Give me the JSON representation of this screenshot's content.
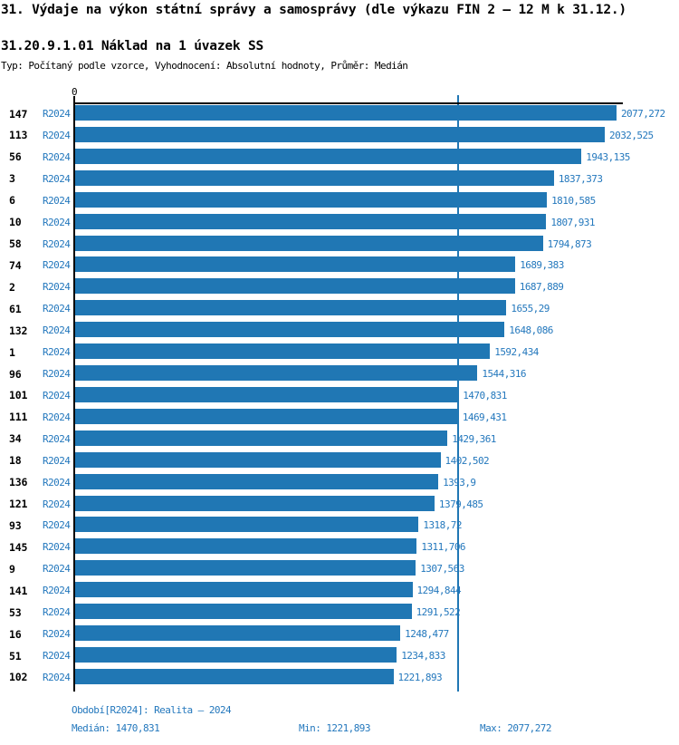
{
  "header": {
    "title": "31. Výdaje na výkon státní správy a samosprávy (dle výkazu FIN 2 – 12 M k 31.12.)",
    "subtitle": "31.20.9.1.01 Náklad na 1 úvazek SS",
    "meta": "Typ: Počítaný podle vzorce, Vyhodnocení: Absolutní hodnoty, Průměr: Medián"
  },
  "chart_data": {
    "type": "bar",
    "orientation": "horizontal",
    "axis_zero_label": "0",
    "xlim": [
      0,
      2100
    ],
    "grid": false,
    "series_label": "R2024",
    "categories": [
      "147",
      "113",
      "56",
      "3",
      "6",
      "10",
      "58",
      "74",
      "2",
      "61",
      "132",
      "1",
      "96",
      "101",
      "111",
      "34",
      "18",
      "136",
      "121",
      "93",
      "145",
      "9",
      "141",
      "53",
      "16",
      "51",
      "102"
    ],
    "values": [
      2077.272,
      2032.525,
      1943.135,
      1837.373,
      1810.585,
      1807.931,
      1794.873,
      1689.383,
      1687.889,
      1655.29,
      1648.086,
      1592.434,
      1544.316,
      1470.831,
      1469.431,
      1429.361,
      1402.502,
      1393.9,
      1379.485,
      1318.72,
      1311.706,
      1307.563,
      1294.844,
      1291.522,
      1248.477,
      1234.833,
      1221.893
    ],
    "value_labels": [
      "2077,272",
      "2032,525",
      "1943,135",
      "1837,373",
      "1810,585",
      "1807,931",
      "1794,873",
      "1689,383",
      "1687,889",
      "1655,29",
      "1648,086",
      "1592,434",
      "1544,316",
      "1470,831",
      "1469,431",
      "1429,361",
      "1402,502",
      "1393,9",
      "1379,485",
      "1318,72",
      "1311,706",
      "1307,563",
      "1294,844",
      "1291,522",
      "1248,477",
      "1234,833",
      "1221,893"
    ],
    "median": 1470.831,
    "min": 1221.893,
    "max": 2077.272,
    "bar_color": "#2077b4",
    "label_color": "#2478bd"
  },
  "footer": {
    "period": "Období[R2024]: Realita – 2024",
    "median": "Medián: 1470,831",
    "min": "Min: 1221,893",
    "max": "Max: 2077,272"
  }
}
